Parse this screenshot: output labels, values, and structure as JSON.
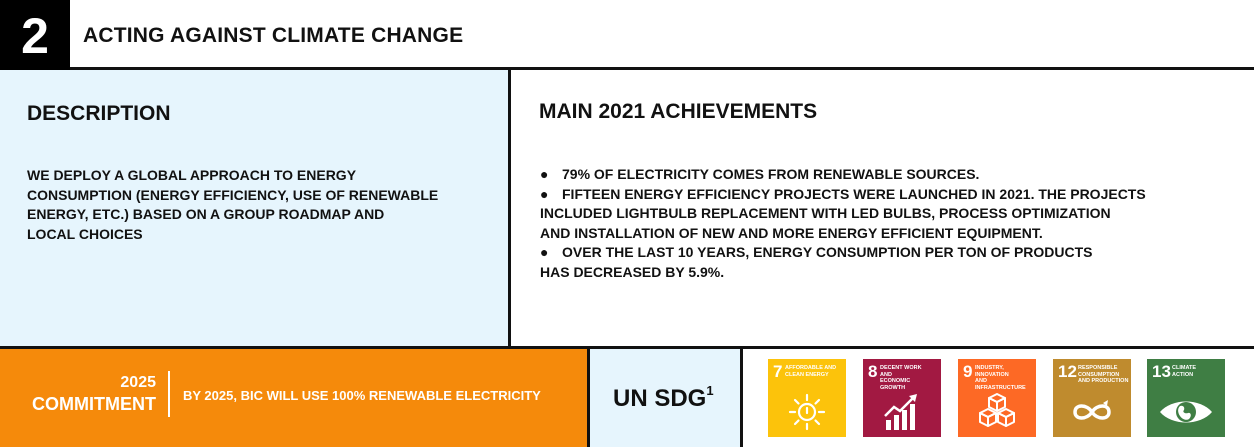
{
  "header": {
    "number": "2",
    "title": "ACTING AGAINST CLIMATE CHANGE"
  },
  "description": {
    "heading": "DESCRIPTION",
    "lines": [
      "WE DEPLOY A GLOBAL APPROACH TO ENERGY",
      "CONSUMPTION (ENERGY EFFICIENCY, USE OF RENEWABLE",
      "ENERGY, ETC.) BASED ON A GROUP ROADMAP AND",
      "LOCAL CHOICES"
    ]
  },
  "achievements": {
    "heading": "MAIN 2021 ACHIEVEMENTS",
    "bullet": "●",
    "items": [
      {
        "lines": [
          "79% OF ELECTRICITY COMES FROM RENEWABLE SOURCES."
        ]
      },
      {
        "lines": [
          "FIFTEEN ENERGY EFFICIENCY PROJECTS WERE LAUNCHED IN 2021. THE PROJECTS",
          "INCLUDED LIGHTBULB REPLACEMENT WITH LED BULBS, PROCESS OPTIMIZATION",
          "AND INSTALLATION OF NEW AND MORE ENERGY EFFICIENT EQUIPMENT."
        ]
      },
      {
        "lines": [
          "OVER THE LAST 10 YEARS, ENERGY CONSUMPTION PER TON OF PRODUCTS",
          "HAS DECREASED BY 5.9%."
        ]
      }
    ]
  },
  "commitment": {
    "year": "2025",
    "label": "COMMITMENT",
    "text": "BY 2025, BIC WILL USE 100% RENEWABLE ELECTRICITY",
    "color": "#f58a0b"
  },
  "sdg": {
    "label": "UN SDG",
    "footnote": "1",
    "tiles": [
      {
        "number": "7",
        "name_lines": [
          "AFFORDABLE AND",
          "CLEAN ENERGY"
        ],
        "color": "#fcc30b",
        "icon": "sun-power-icon"
      },
      {
        "number": "8",
        "name_lines": [
          "DECENT WORK AND",
          "ECONOMIC GROWTH"
        ],
        "color": "#a21942",
        "icon": "growth-chart-icon"
      },
      {
        "number": "9",
        "name_lines": [
          "INDUSTRY, INNOVATION",
          "AND INFRASTRUCTURE"
        ],
        "color": "#fd6925",
        "icon": "cubes-icon"
      },
      {
        "number": "12",
        "name_lines": [
          "RESPONSIBLE",
          "CONSUMPTION",
          "AND PRODUCTION"
        ],
        "color": "#bf8b2e",
        "icon": "infinity-icon"
      },
      {
        "number": "13",
        "name_lines": [
          "CLIMATE",
          "ACTION"
        ],
        "color": "#3f7e44",
        "icon": "eye-globe-icon"
      }
    ]
  }
}
